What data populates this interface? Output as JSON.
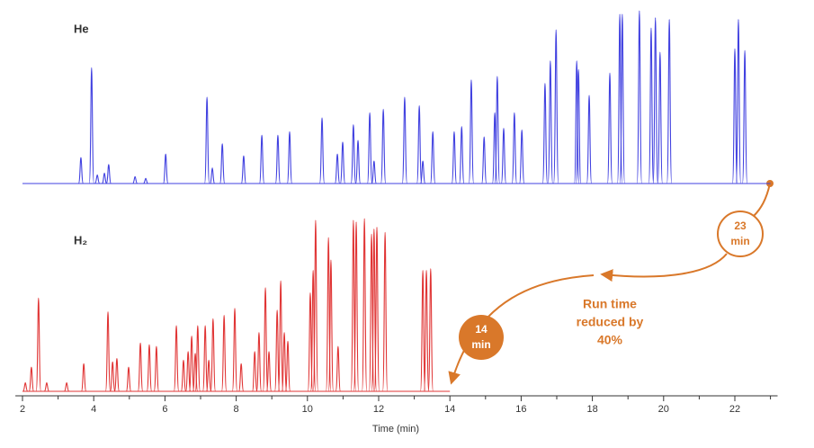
{
  "chart_data": {
    "type": "chromatogram",
    "xlabel": "Time (min)",
    "xlim": [
      1.8,
      23.2
    ],
    "xticks": [
      2,
      4,
      6,
      8,
      10,
      12,
      14,
      16,
      18,
      20,
      22
    ],
    "xminorticks": [
      3,
      5,
      7,
      9,
      11,
      13,
      15,
      17,
      19,
      21,
      23
    ],
    "ylim": [
      0,
      100
    ],
    "series": [
      {
        "name": "He",
        "color": "#4141e0",
        "run_end": 23,
        "x": [
          3.64,
          3.94,
          4.1,
          4.3,
          4.42,
          5.16,
          5.46,
          6.02,
          7.18,
          7.33,
          7.61,
          8.21,
          8.72,
          9.17,
          9.5,
          10.41,
          10.84,
          10.99,
          11.29,
          11.42,
          11.75,
          11.87,
          12.13,
          12.73,
          13.14,
          13.24,
          13.52,
          14.12,
          14.33,
          14.6,
          14.96,
          15.26,
          15.33,
          15.51,
          15.81,
          16.02,
          16.67,
          16.82,
          16.98,
          17.56,
          17.61,
          17.91,
          18.49,
          18.77,
          18.84,
          19.32,
          19.65,
          19.77,
          19.9,
          20.16,
          22.0,
          22.1,
          22.28
        ],
        "values": [
          15,
          67,
          5,
          6,
          11,
          4,
          3,
          17,
          50,
          9,
          23,
          16,
          28,
          28,
          30,
          38,
          17,
          24,
          34,
          25,
          41,
          13,
          43,
          50,
          45,
          13,
          30,
          30,
          33,
          60,
          27,
          41,
          62,
          32,
          41,
          31,
          58,
          71,
          89,
          71,
          66,
          51,
          64,
          98,
          98,
          100,
          90,
          96,
          76,
          95,
          78,
          95,
          77
        ]
      },
      {
        "name": "H₂",
        "color": "#e03434",
        "run_end": 14,
        "x": [
          2.08,
          2.25,
          2.45,
          2.68,
          3.24,
          3.72,
          4.4,
          4.53,
          4.65,
          4.98,
          5.31,
          5.56,
          5.76,
          6.32,
          6.52,
          6.65,
          6.75,
          6.85,
          6.92,
          7.13,
          7.23,
          7.35,
          7.66,
          7.96,
          8.14,
          8.52,
          8.64,
          8.82,
          8.92,
          9.15,
          9.25,
          9.35,
          9.45,
          10.08,
          10.16,
          10.23,
          10.59,
          10.66,
          10.86,
          11.29,
          11.37,
          11.6,
          11.8,
          11.87,
          11.95,
          12.18,
          13.24,
          13.34,
          13.46
        ],
        "values": [
          5,
          14,
          54,
          5,
          5,
          16,
          46,
          17,
          19,
          14,
          28,
          27,
          26,
          38,
          18,
          23,
          32,
          22,
          38,
          38,
          18,
          42,
          44,
          48,
          16,
          23,
          34,
          60,
          23,
          47,
          64,
          34,
          29,
          57,
          70,
          99,
          89,
          76,
          26,
          99,
          98,
          100,
          91,
          94,
          95,
          92,
          70,
          70,
          71
        ]
      }
    ],
    "annotations": [
      {
        "lines": [
          "23",
          "min"
        ]
      },
      {
        "lines": [
          "14",
          "min"
        ]
      },
      {
        "lines": [
          "Run time",
          "reduced by",
          "40%"
        ]
      }
    ]
  }
}
